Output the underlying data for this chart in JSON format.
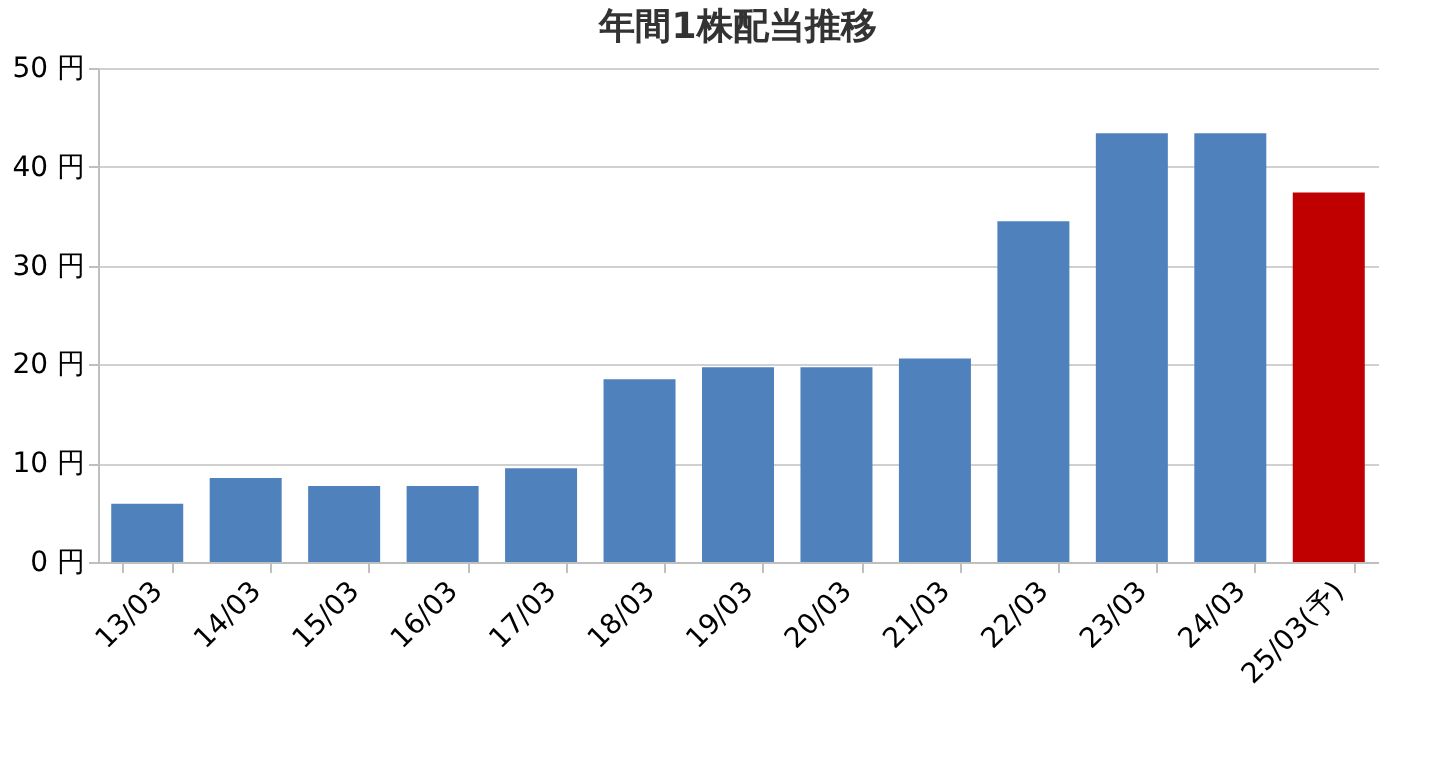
{
  "chart_data": {
    "type": "bar",
    "title": "年間1株配当推移",
    "categories": [
      "13/03",
      "14/03",
      "15/03",
      "16/03",
      "17/03",
      "18/03",
      "19/03",
      "20/03",
      "21/03",
      "22/03",
      "23/03",
      "24/03",
      "25/03(予)"
    ],
    "values": [
      5.9,
      8.5,
      7.7,
      7.7,
      9.5,
      18.5,
      19.7,
      19.7,
      20.6,
      34.5,
      43.4,
      43.4,
      37.4
    ],
    "colors": [
      "#4f81bd",
      "#4f81bd",
      "#4f81bd",
      "#4f81bd",
      "#4f81bd",
      "#4f81bd",
      "#4f81bd",
      "#4f81bd",
      "#4f81bd",
      "#4f81bd",
      "#4f81bd",
      "#4f81bd",
      "#c00000"
    ],
    "ylim": [
      0,
      50
    ],
    "yticks": [
      {
        "value": 0,
        "label": "0 円"
      },
      {
        "value": 10,
        "label": "10 円"
      },
      {
        "value": 20,
        "label": "20 円"
      },
      {
        "value": 30,
        "label": "30 円"
      },
      {
        "value": 40,
        "label": "40 円"
      },
      {
        "value": 50,
        "label": "50 円"
      }
    ],
    "grid": "y"
  }
}
